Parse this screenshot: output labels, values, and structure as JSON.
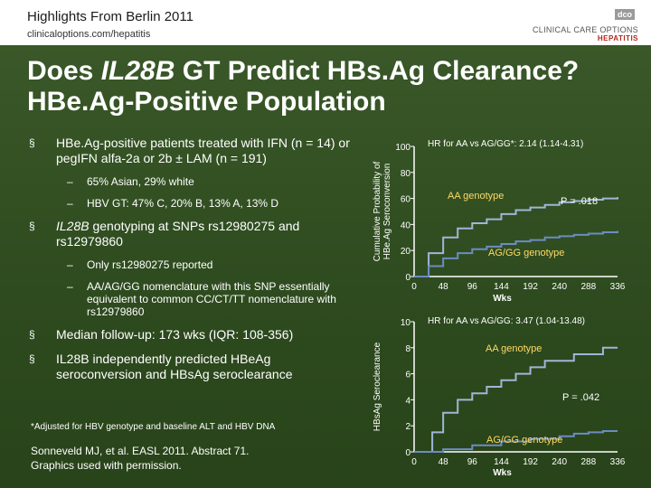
{
  "header": {
    "title": "Highlights From Berlin 2011",
    "url": "clinicaloptions.com/hepatitis",
    "logo_badge": "dco",
    "logo_main": "CLINICAL CARE OPTIONS",
    "logo_sub": "HEPATITIS"
  },
  "slide": {
    "title_part1": "Does ",
    "title_italic": "IL28B",
    "title_part2": " GT Predict HBs.Ag Clearance?",
    "title_line2": "HBe.Ag-Positive Population",
    "bullets": [
      {
        "text": "HBe.Ag-positive patients treated with IFN (n = 14) or pegIFN alfa-2a or 2b ± LAM (n = 191)",
        "subs": [
          "65% Asian, 29% white",
          "HBV GT: 47% C, 20% B, 13% A, 13% D"
        ]
      },
      {
        "italic": "IL28B",
        "text": " genotyping at SNPs rs12980275 and rs12979860",
        "subs": [
          "Only rs12980275 reported",
          "AA/AG/GG nomenclature with this SNP essentially equivalent to common CC/CT/TT nomenclature with rs12979860"
        ]
      },
      {
        "text": "Median follow-up: 173 wks (IQR: 108-356)",
        "subs": []
      },
      {
        "text": "IL28B independently predicted HBeAg seroconversion and HBsAg seroclearance",
        "subs": []
      }
    ],
    "footnote": "*Adjusted for HBV genotype and baseline ALT and HBV DNA",
    "citation_line1": "Sonneveld MJ, et al. EASL 2011. Abstract 71.",
    "citation_line2": "Graphics used with permission."
  },
  "colors": {
    "aa_line": "#9fb6d8",
    "gg_line": "#6c8cc3",
    "accent": "#ffd966"
  },
  "chart_data": [
    {
      "type": "line",
      "title": "HR for AA vs AG/GG*: 2.14 (1.14-4.31)",
      "ylabel_line1": "Cumulative Probability of",
      "ylabel_line2": "HBe.Ag Seroconversion",
      "xlabel": "Wks",
      "ylim": [
        0,
        100
      ],
      "yticks": [
        0,
        20,
        40,
        60,
        80,
        100
      ],
      "xlim": [
        0,
        336
      ],
      "xticks": [
        0,
        48,
        96,
        144,
        192,
        240,
        288,
        336
      ],
      "pvalue": "P = .018",
      "series": [
        {
          "name": "AA genotype",
          "x": [
            0,
            24,
            48,
            72,
            96,
            120,
            144,
            168,
            192,
            216,
            240,
            264,
            288,
            312,
            336
          ],
          "y": [
            0,
            18,
            30,
            37,
            41,
            44,
            48,
            51,
            53,
            55,
            57,
            58,
            59,
            60,
            61
          ]
        },
        {
          "name": "AG/GG genotype",
          "x": [
            0,
            24,
            48,
            72,
            96,
            120,
            144,
            168,
            192,
            216,
            240,
            264,
            288,
            312,
            336
          ],
          "y": [
            0,
            8,
            14,
            18,
            21,
            23,
            25,
            27,
            28,
            30,
            31,
            32,
            33,
            34,
            35
          ]
        }
      ]
    },
    {
      "type": "line",
      "title": "HR for AA vs AG/GG: 3.47 (1.04-13.48)",
      "ylabel_line1": "HBsAg Seroclearance",
      "ylabel_line2": "",
      "xlabel": "Wks",
      "ylim": [
        0,
        10
      ],
      "yticks": [
        0,
        2,
        4,
        6,
        8,
        10
      ],
      "xlim": [
        0,
        336
      ],
      "xticks": [
        0,
        48,
        96,
        144,
        192,
        240,
        288,
        336
      ],
      "pvalue": "P = .042",
      "series": [
        {
          "name": "AA genotype",
          "x": [
            0,
            30,
            48,
            72,
            96,
            120,
            144,
            168,
            192,
            216,
            240,
            264,
            288,
            312,
            336
          ],
          "y": [
            0,
            1.5,
            3,
            4,
            4.5,
            5,
            5.5,
            6,
            6.5,
            7,
            7,
            7.5,
            7.5,
            8,
            8
          ]
        },
        {
          "name": "AG/GG genotype",
          "x": [
            0,
            48,
            96,
            144,
            192,
            240,
            264,
            288,
            312,
            336
          ],
          "y": [
            0,
            0.2,
            0.5,
            0.8,
            1.0,
            1.2,
            1.4,
            1.5,
            1.6,
            1.6
          ]
        }
      ]
    }
  ]
}
